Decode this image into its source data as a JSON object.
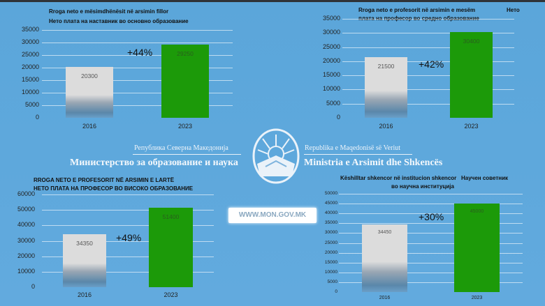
{
  "header": {
    "country_mk": "Република Северна Македонија",
    "ministry_mk": "Министерство за образование и наука",
    "country_sq": "Republika e Maqedonisë së Veriut",
    "ministry_sq": "Ministria e Arsimit dhe Shkencës",
    "website": "WWW.MON.GOV.MK"
  },
  "colors": {
    "background": "#5ba6da",
    "bar_2016": "#dcdcdc",
    "bar_2023": "#1c9a09"
  },
  "chart_data": [
    {
      "type": "bar",
      "title_lines": [
        "Rroga neto e mësimdhënësit në arsimin fillor",
        "Нето плата на наставник во основно образование"
      ],
      "categories": [
        "2016",
        "2023"
      ],
      "values": [
        20300,
        29250
      ],
      "value_labels": [
        "20300",
        "29250"
      ],
      "change_label": "+44%",
      "ylim": [
        0,
        35000
      ],
      "yticks": [
        "0",
        "5000",
        "10000",
        "15000",
        "20000",
        "25000",
        "30000",
        "35000"
      ],
      "grid": true
    },
    {
      "type": "bar",
      "title_lines": [
        "Rroga neto e profesorit në arsimin e mesëm",
        "плата на професор во средно образование"
      ],
      "title_extra": "Нето",
      "categories": [
        "2016",
        "2023"
      ],
      "values": [
        21500,
        30400
      ],
      "value_labels": [
        "21500",
        "30400"
      ],
      "change_label": "+42%",
      "ylim": [
        0,
        35000
      ],
      "yticks": [
        "0",
        "5000",
        "10000",
        "15000",
        "20000",
        "25000",
        "30000",
        "35000"
      ],
      "grid": true
    },
    {
      "type": "bar",
      "title_lines": [
        "RROGA NETO E PROFESORIT NË ARSIMIN E LARTË",
        "НЕТО ПЛАТА НА ПРОФЕСОР ВО ВИСОКО ОБРАЗОВАНИЕ"
      ],
      "categories": [
        "2016",
        "2023"
      ],
      "values": [
        34350,
        51400
      ],
      "value_labels": [
        "34350",
        "51400"
      ],
      "change_label": "+49%",
      "ylim": [
        0,
        60000
      ],
      "yticks": [
        "0",
        "10000",
        "20000",
        "30000",
        "40000",
        "50000",
        "60000"
      ],
      "grid": true
    },
    {
      "type": "bar",
      "title_lines": [
        "Këshilltar shkencor në institucion shkencor",
        "во научна институција"
      ],
      "title_extra": "Научен советник",
      "categories": [
        "2016",
        "2023"
      ],
      "values": [
        34450,
        45000
      ],
      "value_labels": [
        "34450",
        "45000"
      ],
      "change_label": "+30%",
      "ylim": [
        0,
        50000
      ],
      "yticks": [
        "0",
        "5000",
        "10000",
        "15000",
        "20000",
        "25000",
        "30000",
        "35000",
        "40000",
        "45000",
        "50000"
      ],
      "grid": true
    }
  ]
}
